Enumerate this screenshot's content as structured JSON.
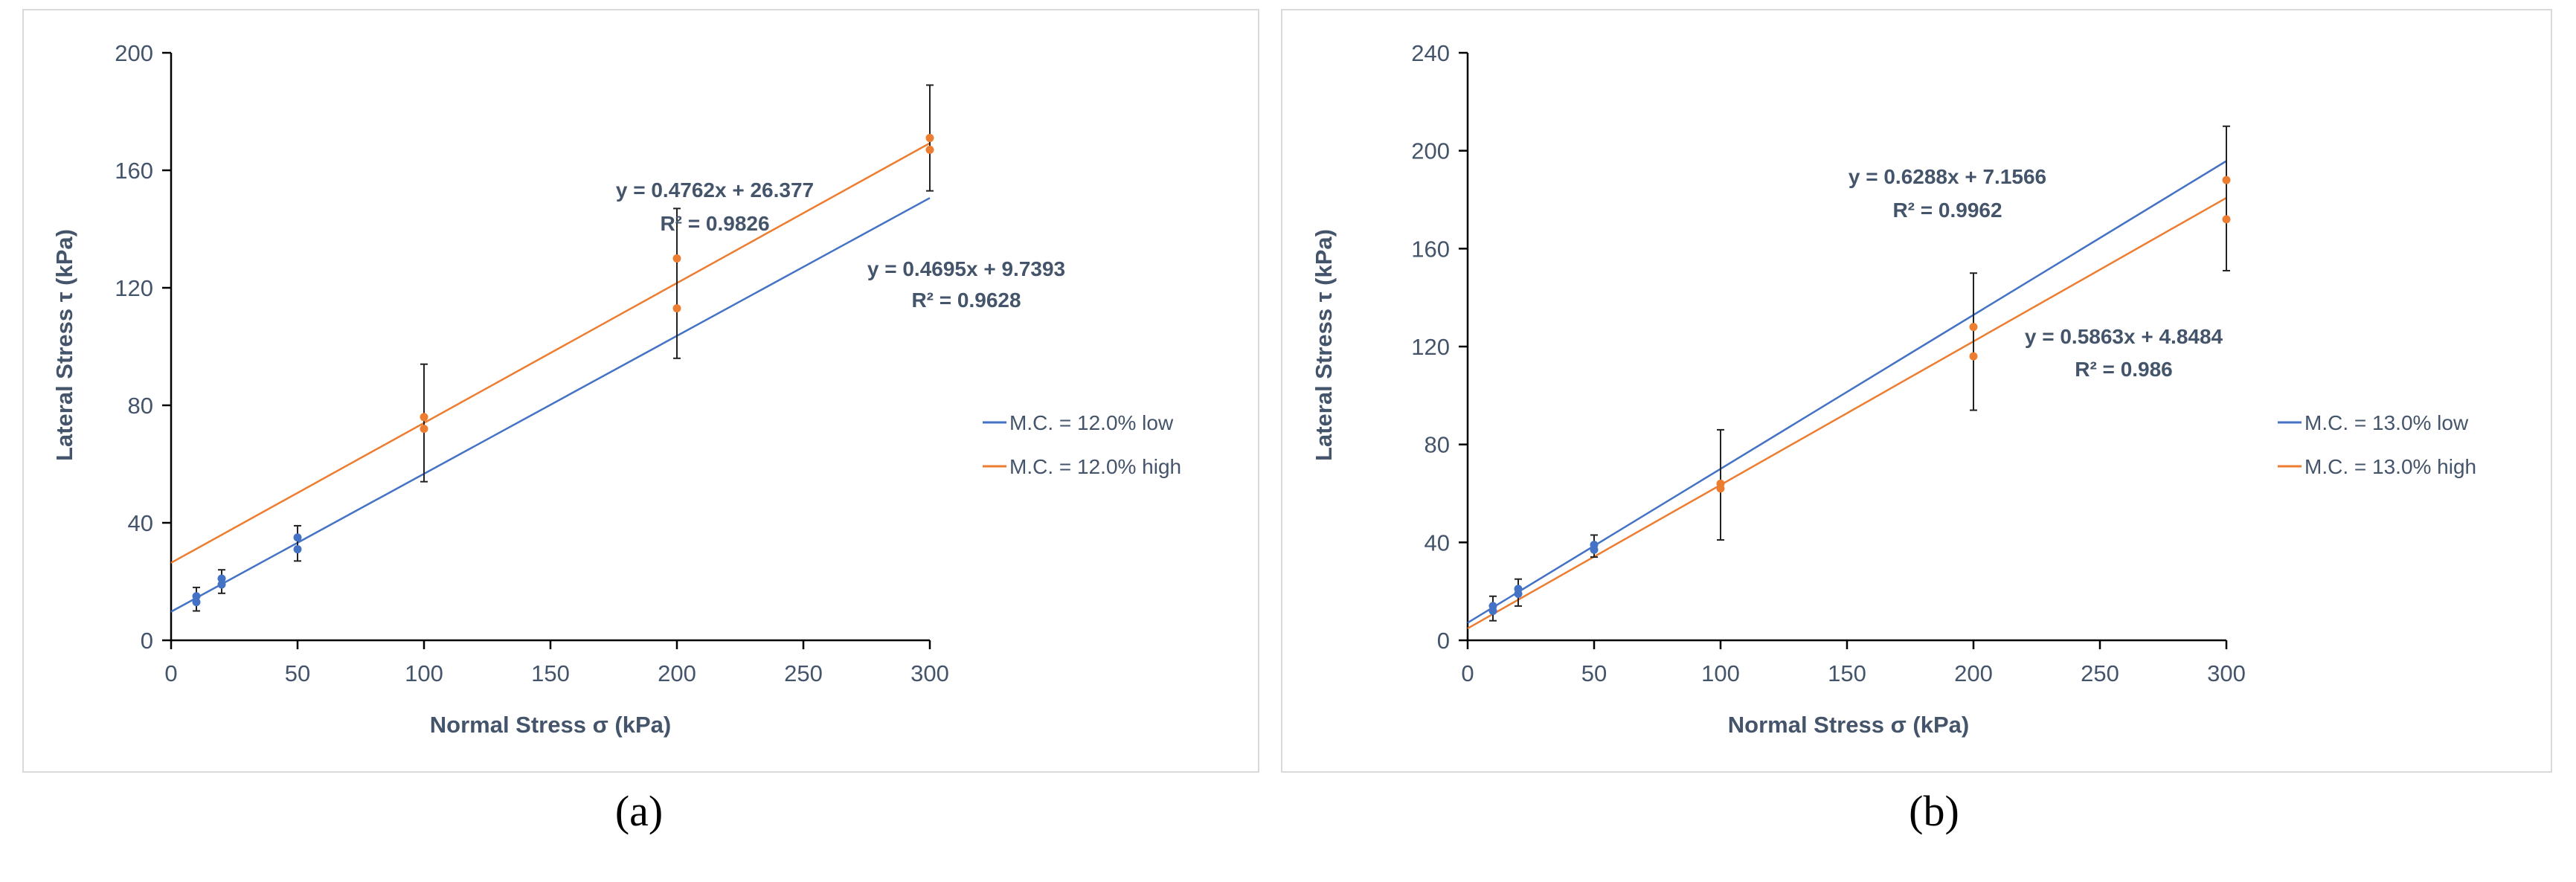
{
  "chart_data": [
    {
      "type": "scatter",
      "panel_label": "(a)",
      "xlabel": "Normal Stress σ (kPa)",
      "ylabel": "Lateral Stress τ (kPa)",
      "xlim": [
        0,
        300
      ],
      "ylim": [
        0,
        200
      ],
      "xticks": [
        "0",
        "50",
        "100",
        "150",
        "200",
        "250",
        "300"
      ],
      "yticks": [
        "0",
        "40",
        "80",
        "120",
        "160",
        "200"
      ],
      "grid": false,
      "legend_position": "right",
      "series": [
        {
          "name": "M.C. = 12.0% low",
          "color": "#4472C4",
          "points": [
            [
              10,
              13
            ],
            [
              10,
              15
            ],
            [
              20,
              19
            ],
            [
              20,
              21
            ],
            [
              50,
              31
            ],
            [
              50,
              35
            ]
          ],
          "trendline": {
            "slope": 0.4695,
            "intercept": 9.7393,
            "equation": "y = 0.4695x + 9.7393",
            "r2": "R² = 0.9628"
          }
        },
        {
          "name": "M.C. = 12.0% high",
          "color": "#ED7D31",
          "points": [
            [
              100,
              72
            ],
            [
              100,
              76
            ],
            [
              200,
              113
            ],
            [
              200,
              130
            ],
            [
              300,
              167
            ],
            [
              300,
              171
            ]
          ],
          "trendline": {
            "slope": 0.4762,
            "intercept": 26.377,
            "equation": "y = 0.4762x + 26.377",
            "r2": "R² = 0.9826"
          }
        }
      ],
      "error_bars": [
        [
          10,
          10,
          18
        ],
        [
          20,
          16,
          24
        ],
        [
          50,
          27,
          39
        ],
        [
          100,
          54,
          94
        ],
        [
          200,
          96,
          147
        ],
        [
          300,
          153,
          189
        ]
      ]
    },
    {
      "type": "scatter",
      "panel_label": "(b)",
      "xlabel": "Normal Stress σ (kPa)",
      "ylabel": "Lateral Stress τ (kPa)",
      "xlim": [
        0,
        300
      ],
      "ylim": [
        0,
        240
      ],
      "xticks": [
        "0",
        "50",
        "100",
        "150",
        "200",
        "250",
        "300"
      ],
      "yticks": [
        "0",
        "40",
        "80",
        "120",
        "160",
        "200",
        "240"
      ],
      "grid": false,
      "legend_position": "right",
      "series": [
        {
          "name": "M.C. = 13.0% low",
          "color": "#4472C4",
          "points": [
            [
              10,
              12
            ],
            [
              10,
              14
            ],
            [
              20,
              19
            ],
            [
              20,
              21
            ],
            [
              50,
              37
            ],
            [
              50,
              39
            ]
          ],
          "trendline": {
            "slope": 0.6288,
            "intercept": 7.1566,
            "equation": "y = 0.6288x + 7.1566",
            "r2": "R² = 0.9962"
          }
        },
        {
          "name": "M.C. = 13.0% high",
          "color": "#ED7D31",
          "points": [
            [
              100,
              62
            ],
            [
              100,
              64
            ],
            [
              200,
              116
            ],
            [
              200,
              128
            ],
            [
              300,
              172
            ],
            [
              300,
              188
            ]
          ],
          "trendline": {
            "slope": 0.5863,
            "intercept": 4.8484,
            "equation": "y = 0.5863x + 4.8484",
            "r2": "R² = 0.986"
          }
        }
      ],
      "error_bars": [
        [
          10,
          8,
          18
        ],
        [
          20,
          14,
          25
        ],
        [
          50,
          34,
          43
        ],
        [
          100,
          41,
          86
        ],
        [
          200,
          94,
          150
        ],
        [
          300,
          151,
          210
        ]
      ]
    }
  ]
}
